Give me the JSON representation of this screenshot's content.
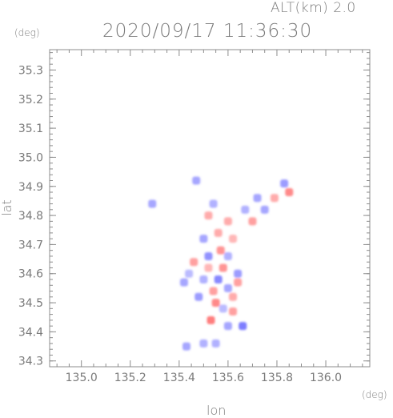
{
  "header": {
    "altitude_label": "ALT(km) 2.0",
    "timestamp": "2020/09/17 11:36:30",
    "y_unit": "(deg)",
    "x_unit": "(deg)"
  },
  "axes": {
    "xlabel": "lon",
    "ylabel": "lat"
  },
  "colors": {
    "frame": "#8c8c8c",
    "positive": "#ff6060",
    "negative": "#6b6bff",
    "text": "#7a7a7a"
  },
  "chart_data": {
    "type": "heatmap",
    "title": "2020/09/17 11:36:30",
    "subtitle": "ALT(km) 2.0",
    "xlabel": "lon",
    "ylabel": "lat",
    "xlim": [
      134.87,
      136.18
    ],
    "ylim": [
      34.28,
      35.37
    ],
    "x_ticks": [
      "135.0",
      "135.2",
      "135.4",
      "135.6",
      "135.8",
      "136.0"
    ],
    "x_tick_values": [
      135.0,
      135.2,
      135.4,
      135.6,
      135.8,
      136.0
    ],
    "y_ticks": [
      "34.3",
      "34.4",
      "34.5",
      "34.6",
      "34.7",
      "34.8",
      "34.9",
      "35.0",
      "35.1",
      "35.2",
      "35.3"
    ],
    "y_tick_values": [
      34.3,
      34.4,
      34.5,
      34.6,
      34.7,
      34.8,
      34.9,
      35.0,
      35.1,
      35.2,
      35.3
    ],
    "grid": false,
    "cells": [
      {
        "lon": 135.58,
        "lat": 34.62,
        "value": 0.6
      },
      {
        "lon": 135.52,
        "lat": 34.66,
        "value": -0.7
      },
      {
        "lon": 135.6,
        "lat": 34.55,
        "value": -0.5
      },
      {
        "lon": 135.55,
        "lat": 34.5,
        "value": 0.7
      },
      {
        "lon": 135.62,
        "lat": 34.47,
        "value": 0.5
      },
      {
        "lon": 135.5,
        "lat": 34.58,
        "value": -0.4
      },
      {
        "lon": 135.57,
        "lat": 34.68,
        "value": 0.6
      },
      {
        "lon": 135.64,
        "lat": 34.6,
        "value": -0.6
      },
      {
        "lon": 135.53,
        "lat": 34.44,
        "value": 0.8
      },
      {
        "lon": 135.6,
        "lat": 34.42,
        "value": -0.5
      },
      {
        "lon": 135.66,
        "lat": 34.42,
        "value": -0.9
      },
      {
        "lon": 135.46,
        "lat": 34.64,
        "value": 0.5
      },
      {
        "lon": 135.44,
        "lat": 34.6,
        "value": -0.3
      },
      {
        "lon": 135.56,
        "lat": 34.74,
        "value": 0.4
      },
      {
        "lon": 135.5,
        "lat": 34.72,
        "value": -0.5
      },
      {
        "lon": 135.62,
        "lat": 34.52,
        "value": 0.4
      },
      {
        "lon": 135.48,
        "lat": 34.52,
        "value": -0.6
      },
      {
        "lon": 135.29,
        "lat": 34.84,
        "value": -0.5
      },
      {
        "lon": 135.47,
        "lat": 34.92,
        "value": -0.5
      },
      {
        "lon": 135.52,
        "lat": 34.8,
        "value": 0.4
      },
      {
        "lon": 135.54,
        "lat": 34.84,
        "value": -0.4
      },
      {
        "lon": 135.75,
        "lat": 34.82,
        "value": -0.5
      },
      {
        "lon": 135.79,
        "lat": 34.86,
        "value": 0.4
      },
      {
        "lon": 135.83,
        "lat": 34.91,
        "value": -0.6
      },
      {
        "lon": 135.85,
        "lat": 34.88,
        "value": 0.7
      },
      {
        "lon": 135.7,
        "lat": 34.78,
        "value": 0.5
      },
      {
        "lon": 135.67,
        "lat": 34.82,
        "value": -0.4
      },
      {
        "lon": 135.6,
        "lat": 34.78,
        "value": 0.4
      },
      {
        "lon": 135.72,
        "lat": 34.86,
        "value": -0.5
      },
      {
        "lon": 135.5,
        "lat": 34.36,
        "value": -0.4
      },
      {
        "lon": 135.43,
        "lat": 34.35,
        "value": -0.5
      },
      {
        "lon": 135.55,
        "lat": 34.36,
        "value": -0.4
      },
      {
        "lon": 135.64,
        "lat": 34.57,
        "value": 0.5
      },
      {
        "lon": 135.56,
        "lat": 34.58,
        "value": -0.8
      },
      {
        "lon": 135.58,
        "lat": 34.48,
        "value": -0.3
      },
      {
        "lon": 135.52,
        "lat": 34.62,
        "value": 0.3
      },
      {
        "lon": 135.6,
        "lat": 34.66,
        "value": -0.4
      },
      {
        "lon": 135.54,
        "lat": 34.54,
        "value": 0.5
      },
      {
        "lon": 135.42,
        "lat": 34.57,
        "value": -0.5
      },
      {
        "lon": 135.62,
        "lat": 34.72,
        "value": 0.3
      }
    ]
  }
}
